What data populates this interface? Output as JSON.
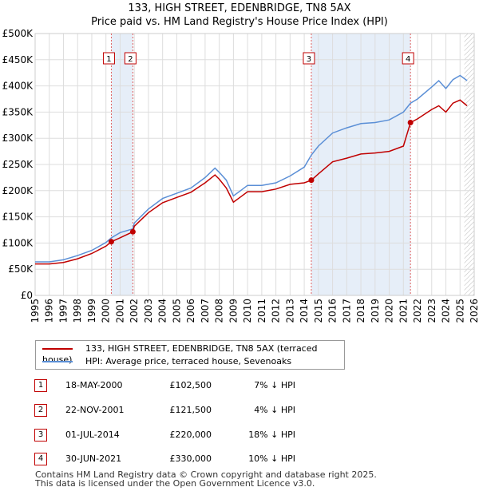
{
  "title": "133, HIGH STREET, EDENBRIDGE, TN8 5AX",
  "subtitle": "Price paid vs. HM Land Registry's House Price Index (HPI)",
  "colors": {
    "property": "#c00000",
    "hpi": "#5b8fd6",
    "shade": "#dde8f6",
    "marker_border": "#c00000"
  },
  "legend": [
    {
      "label": "133, HIGH STREET, EDENBRIDGE, TN8 5AX (terraced house)",
      "color": "#c00000"
    },
    {
      "label": "HPI: Average price, terraced house, Sevenoaks",
      "color": "#5b8fd6"
    }
  ],
  "transactions": [
    {
      "num": "1",
      "date": "18-MAY-2000",
      "price": "£102,500",
      "pct": "7% ↓ HPI"
    },
    {
      "num": "2",
      "date": "22-NOV-2001",
      "price": "£121,500",
      "pct": "4% ↓ HPI"
    },
    {
      "num": "3",
      "date": "01-JUL-2014",
      "price": "£220,000",
      "pct": "18% ↓ HPI"
    },
    {
      "num": "4",
      "date": "30-JUN-2021",
      "price": "£330,000",
      "pct": "10% ↓ HPI"
    }
  ],
  "footer": [
    "Contains HM Land Registry data © Crown copyright and database right 2025.",
    "This data is licensed under the Open Government Licence v3.0."
  ],
  "chart_data": {
    "type": "line",
    "xlim": [
      1995,
      2026
    ],
    "ylim": [
      0,
      500000
    ],
    "yticks": [
      0,
      50000,
      100000,
      150000,
      200000,
      250000,
      300000,
      350000,
      400000,
      450000,
      500000
    ],
    "ytick_labels": [
      "£0",
      "£50K",
      "£100K",
      "£150K",
      "£200K",
      "£250K",
      "£300K",
      "£350K",
      "£400K",
      "£450K",
      "£500K"
    ],
    "xticks": [
      1995,
      1996,
      1997,
      1998,
      1999,
      2000,
      2001,
      2002,
      2003,
      2004,
      2005,
      2006,
      2007,
      2008,
      2009,
      2010,
      2011,
      2012,
      2013,
      2014,
      2015,
      2016,
      2017,
      2018,
      2019,
      2020,
      2021,
      2022,
      2023,
      2024,
      2025,
      2026
    ],
    "grid": true,
    "shaded_ranges": [
      [
        2000.38,
        2001.9
      ],
      [
        2014.5,
        2021.5
      ]
    ],
    "hatched_from": 2025.3,
    "sales": [
      {
        "label": "1",
        "x": 2000.38,
        "y": 102500
      },
      {
        "label": "2",
        "x": 2001.9,
        "y": 121500
      },
      {
        "label": "3",
        "x": 2014.5,
        "y": 220000
      },
      {
        "label": "4",
        "x": 2021.5,
        "y": 330000
      }
    ],
    "series": [
      {
        "name": "HPI: Average price, terraced house, Sevenoaks",
        "points": [
          [
            1995,
            64000
          ],
          [
            1996,
            64000
          ],
          [
            1997,
            68000
          ],
          [
            1998,
            76000
          ],
          [
            1999,
            86000
          ],
          [
            2000,
            101000
          ],
          [
            2000.38,
            110000
          ],
          [
            2001,
            120000
          ],
          [
            2001.9,
            127000
          ],
          [
            2002,
            138000
          ],
          [
            2003,
            165000
          ],
          [
            2004,
            185000
          ],
          [
            2005,
            195000
          ],
          [
            2006,
            205000
          ],
          [
            2007,
            225000
          ],
          [
            2007.7,
            243000
          ],
          [
            2008,
            235000
          ],
          [
            2008.5,
            220000
          ],
          [
            2009,
            190000
          ],
          [
            2009.5,
            200000
          ],
          [
            2010,
            210000
          ],
          [
            2011,
            210000
          ],
          [
            2012,
            215000
          ],
          [
            2013,
            228000
          ],
          [
            2014,
            245000
          ],
          [
            2014.5,
            268000
          ],
          [
            2015,
            285000
          ],
          [
            2016,
            310000
          ],
          [
            2017,
            320000
          ],
          [
            2018,
            328000
          ],
          [
            2019,
            330000
          ],
          [
            2020,
            335000
          ],
          [
            2021,
            350000
          ],
          [
            2021.5,
            367000
          ],
          [
            2022,
            375000
          ],
          [
            2023,
            398000
          ],
          [
            2023.5,
            410000
          ],
          [
            2024,
            395000
          ],
          [
            2024.5,
            412000
          ],
          [
            2025,
            420000
          ],
          [
            2025.5,
            410000
          ]
        ]
      },
      {
        "name": "133, HIGH STREET, EDENBRIDGE, TN8 5AX (terraced house)",
        "points": [
          [
            1995,
            60000
          ],
          [
            1996,
            60000
          ],
          [
            1997,
            63000
          ],
          [
            1998,
            70000
          ],
          [
            1999,
            80000
          ],
          [
            2000,
            94000
          ],
          [
            2000.38,
            102500
          ],
          [
            2001,
            110000
          ],
          [
            2001.9,
            121500
          ],
          [
            2002,
            132000
          ],
          [
            2003,
            158000
          ],
          [
            2004,
            177000
          ],
          [
            2005,
            187000
          ],
          [
            2006,
            197000
          ],
          [
            2007,
            215000
          ],
          [
            2007.7,
            230000
          ],
          [
            2008,
            222000
          ],
          [
            2008.5,
            205000
          ],
          [
            2009,
            178000
          ],
          [
            2009.5,
            188000
          ],
          [
            2010,
            198000
          ],
          [
            2011,
            198000
          ],
          [
            2012,
            203000
          ],
          [
            2013,
            212000
          ],
          [
            2014,
            215000
          ],
          [
            2014.5,
            220000
          ],
          [
            2015,
            232000
          ],
          [
            2016,
            255000
          ],
          [
            2017,
            262000
          ],
          [
            2018,
            270000
          ],
          [
            2019,
            272000
          ],
          [
            2020,
            275000
          ],
          [
            2021,
            285000
          ],
          [
            2021.5,
            330000
          ],
          [
            2022,
            337000
          ],
          [
            2023,
            355000
          ],
          [
            2023.5,
            362000
          ],
          [
            2024,
            350000
          ],
          [
            2024.5,
            367000
          ],
          [
            2025,
            373000
          ],
          [
            2025.5,
            362000
          ]
        ]
      }
    ]
  }
}
